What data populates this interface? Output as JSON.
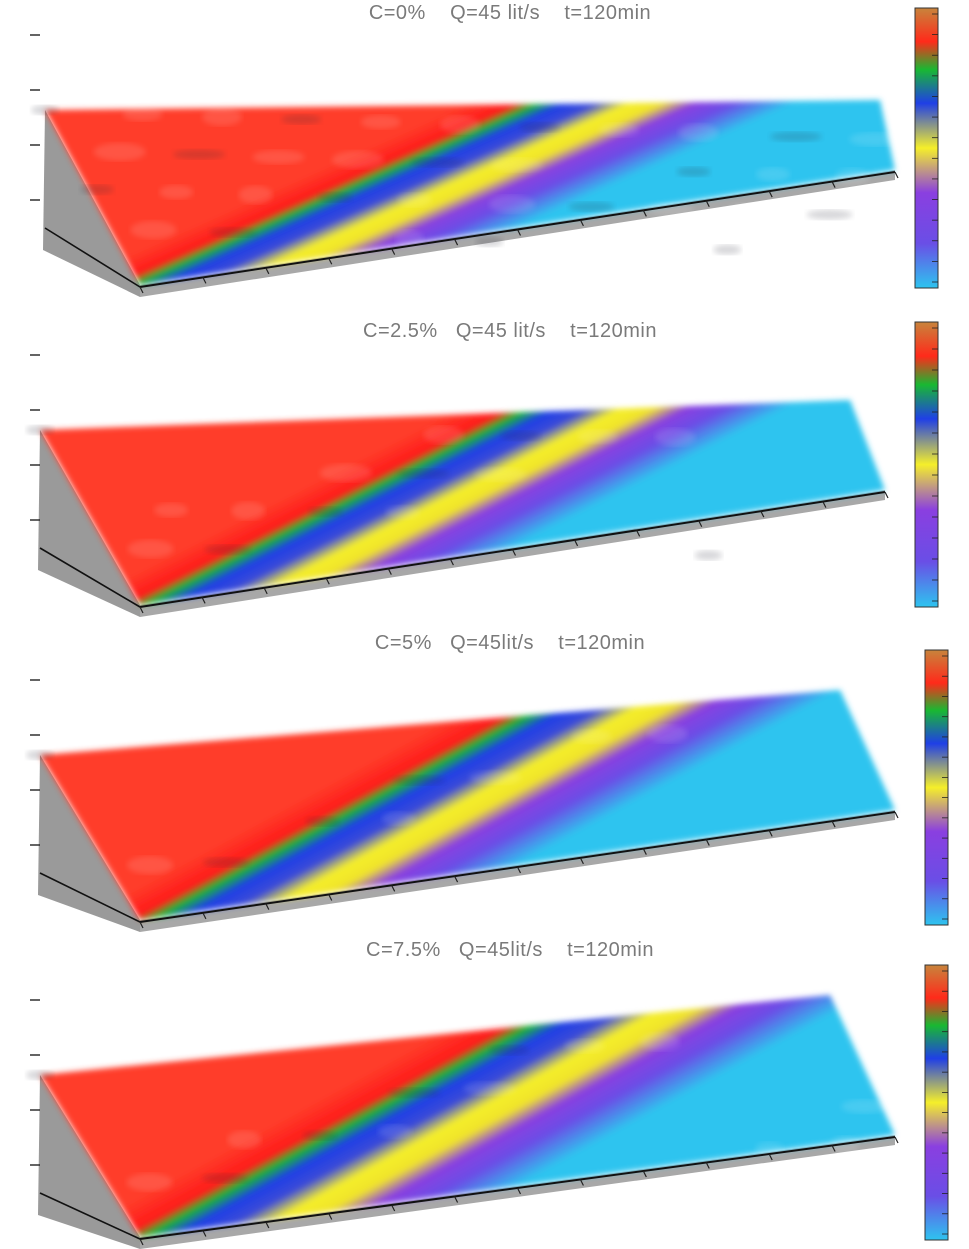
{
  "figure": {
    "panels": [
      {
        "title": "C=0%    Q=45 lit/s    t=120min",
        "roughness": 1.0,
        "colorbar_range": [
          -1.6,
          8.8
        ]
      },
      {
        "title": "C=2.5%   Q=45 lit/s    t=120min",
        "roughness": 0.45,
        "colorbar_range": [
          -1.4,
          9.6
        ]
      },
      {
        "title": "C=5%   Q=45lit/s    t=120min",
        "roughness": 0.25,
        "colorbar_range": [
          -2,
          11
        ]
      },
      {
        "title": "C=7.5%   Q=45lit/s    t=120min",
        "roughness": 0.35,
        "colorbar_range": [
          -2,
          14
        ]
      }
    ]
  },
  "chart_data": [
    {
      "type": "heatmap",
      "title": "C=0%    Q=45 lit/s    t=120min",
      "colorbar": {
        "colors": [
          "#2ec4ef",
          "#8a3fe0",
          "#f5ef2a",
          "#1f3fe6",
          "#19b832",
          "#ff2a1a",
          "#c8843c"
        ]
      }
    },
    {
      "type": "heatmap",
      "title": "C=2.5%   Q=45 lit/s    t=120min",
      "colorbar": {
        "colors": [
          "#2ec4ef",
          "#8a3fe0",
          "#f5ef2a",
          "#1f3fe6",
          "#19b832",
          "#ff2a1a",
          "#c8843c"
        ]
      }
    },
    {
      "type": "heatmap",
      "title": "C=5%   Q=45lit/s    t=120min",
      "colorbar": {
        "colors": [
          "#2ec4ef",
          "#8a3fe0",
          "#f5ef2a",
          "#1f3fe6",
          "#19b832",
          "#ff2a1a",
          "#c8843c"
        ]
      }
    },
    {
      "type": "heatmap",
      "title": "C=7.5%   Q=45lit/s    t=120min",
      "colorbar": {
        "colors": [
          "#2ec4ef",
          "#8a3fe0",
          "#f5ef2a",
          "#1f3fe6",
          "#19b832",
          "#ff2a1a",
          "#c8843c"
        ]
      }
    }
  ]
}
